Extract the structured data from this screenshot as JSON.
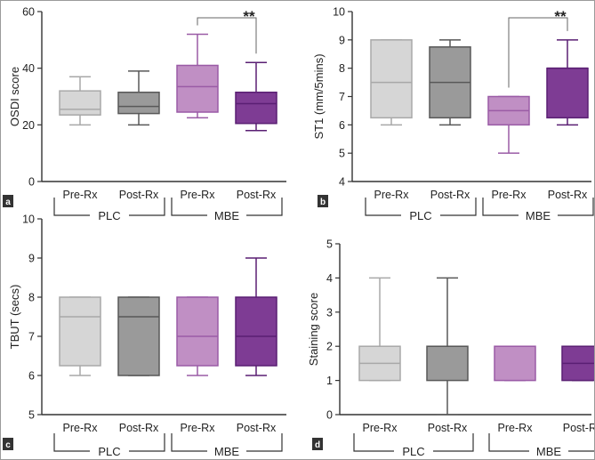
{
  "figure": {
    "groups": [
      "PLC",
      "MBE"
    ]
  },
  "colors": {
    "pre_plc": "#d6d6d6",
    "post_plc": "#9a9a9a",
    "pre_mbe": "#c08fc4",
    "post_mbe": "#7e3c94",
    "pre_plc_line": "#a8a8a8",
    "post_plc_line": "#585858",
    "pre_mbe_line": "#9a5ba6",
    "post_mbe_line": "#5a1f73",
    "axis": "#333333",
    "panel_label_bg": "#333333"
  },
  "chart_data": [
    {
      "id": "a",
      "panel_label": "a",
      "type": "boxplot",
      "ylabel": "OSDI score",
      "ylim": [
        0,
        60
      ],
      "yticks": [
        "0",
        "20",
        "40",
        "60"
      ],
      "categories": [
        "Pre-Rx",
        "Post-Rx",
        "Pre-Rx",
        "Post-Rx"
      ],
      "groups": [
        "PLC",
        "PLC",
        "MBE",
        "MBE"
      ],
      "series": [
        {
          "name": "PLC Pre-Rx",
          "min": 20,
          "q1": 23.5,
          "median": 25.5,
          "q3": 32,
          "max": 37
        },
        {
          "name": "PLC Post-Rx",
          "min": 20,
          "q1": 24,
          "median": 26.5,
          "q3": 31.5,
          "max": 39
        },
        {
          "name": "MBE Pre-Rx",
          "min": 22.5,
          "q1": 24.5,
          "median": 33.5,
          "q3": 41,
          "max": 52
        },
        {
          "name": "MBE Post-Rx",
          "min": 18,
          "q1": 20.5,
          "median": 27.5,
          "q3": 31.5,
          "max": 42
        }
      ],
      "significance": {
        "from": 2,
        "to": 3,
        "label": "**"
      }
    },
    {
      "id": "b",
      "panel_label": "b",
      "type": "boxplot",
      "ylabel": "ST1 (mm/5mins)",
      "ylim": [
        4,
        10
      ],
      "yticks": [
        "4",
        "5",
        "6",
        "7",
        "8",
        "9",
        "10"
      ],
      "categories": [
        "Pre-Rx",
        "Post-Rx",
        "Pre-Rx",
        "Post-Rx"
      ],
      "groups": [
        "PLC",
        "PLC",
        "MBE",
        "MBE"
      ],
      "series": [
        {
          "name": "PLC Pre-Rx",
          "min": 6,
          "q1": 6.25,
          "median": 7.5,
          "q3": 9,
          "max": 9
        },
        {
          "name": "PLC Post-Rx",
          "min": 6,
          "q1": 6.25,
          "median": 7.5,
          "q3": 8.75,
          "max": 9
        },
        {
          "name": "MBE Pre-Rx",
          "min": 5,
          "q1": 6,
          "median": 6.5,
          "q3": 7,
          "max": 7
        },
        {
          "name": "MBE Post-Rx",
          "min": 6,
          "q1": 6.25,
          "median": 8,
          "q3": 8,
          "max": 9
        }
      ],
      "significance": {
        "from": 2,
        "to": 3,
        "label": "**"
      }
    },
    {
      "id": "c",
      "panel_label": "c",
      "type": "boxplot",
      "ylabel": "TBUT (secs)",
      "ylim": [
        5,
        10
      ],
      "yticks": [
        "5",
        "6",
        "7",
        "8",
        "9",
        "10"
      ],
      "categories": [
        "Pre-Rx",
        "Post-Rx",
        "Pre-Rx",
        "Post-Rx"
      ],
      "groups": [
        "PLC",
        "PLC",
        "MBE",
        "MBE"
      ],
      "series": [
        {
          "name": "PLC Pre-Rx",
          "min": 6,
          "q1": 6.25,
          "median": 7.5,
          "q3": 8,
          "max": 8
        },
        {
          "name": "PLC Post-Rx",
          "min": 6,
          "q1": 6,
          "median": 7.5,
          "q3": 8,
          "max": 8
        },
        {
          "name": "MBE Pre-Rx",
          "min": 6,
          "q1": 6.25,
          "median": 7,
          "q3": 8,
          "max": 8
        },
        {
          "name": "MBE Post-Rx",
          "min": 6,
          "q1": 6.25,
          "median": 7,
          "q3": 8,
          "max": 9
        }
      ],
      "significance": null
    },
    {
      "id": "d",
      "panel_label": "d",
      "type": "boxplot",
      "ylabel": "Staining score",
      "ylim": [
        0,
        5
      ],
      "yticks": [
        "0",
        "1",
        "2",
        "3",
        "4",
        "5"
      ],
      "categories": [
        "Pre-Rx",
        "Post-Rx",
        "Pre-Rx",
        "Post-Rx"
      ],
      "groups": [
        "PLC",
        "PLC",
        "MBE",
        "MBE"
      ],
      "series": [
        {
          "name": "PLC Pre-Rx",
          "min": 1,
          "q1": 1,
          "median": 1.5,
          "q3": 2,
          "max": 4
        },
        {
          "name": "PLC Post-Rx",
          "min": 0,
          "q1": 1,
          "median": 2,
          "q3": 2,
          "max": 4
        },
        {
          "name": "MBE Pre-Rx",
          "min": 1,
          "q1": 1,
          "median": 2,
          "q3": 2,
          "max": 2
        },
        {
          "name": "MBE Post-Rx",
          "min": 1,
          "q1": 1,
          "median": 1.5,
          "q3": 2,
          "max": 2
        }
      ],
      "significance": null
    }
  ]
}
